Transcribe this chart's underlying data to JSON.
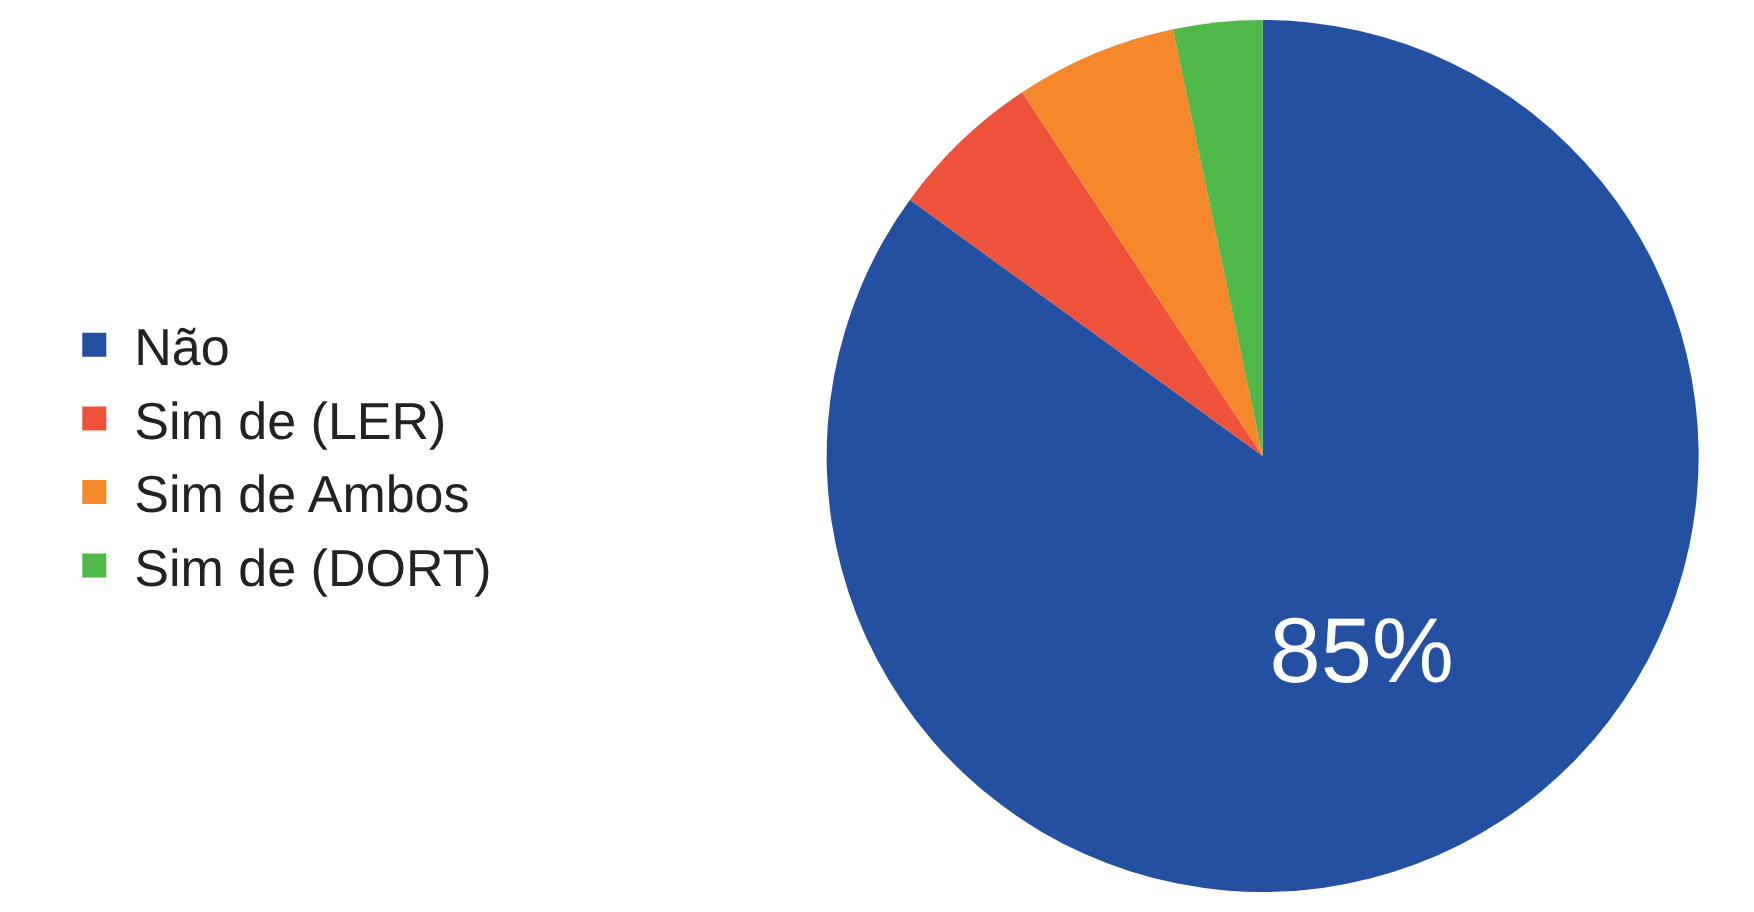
{
  "chart_data": {
    "type": "pie",
    "categories": [
      "Não",
      "Sim de (LER)",
      "Sim de Ambos",
      "Sim de (DORT)"
    ],
    "values": [
      85,
      5.7,
      6,
      3.3
    ],
    "colors": [
      "#2350a0",
      "#ee523a",
      "#f5882a",
      "#50b848"
    ],
    "value_labels": [
      "85%",
      null,
      null,
      null
    ],
    "legend": "left"
  }
}
